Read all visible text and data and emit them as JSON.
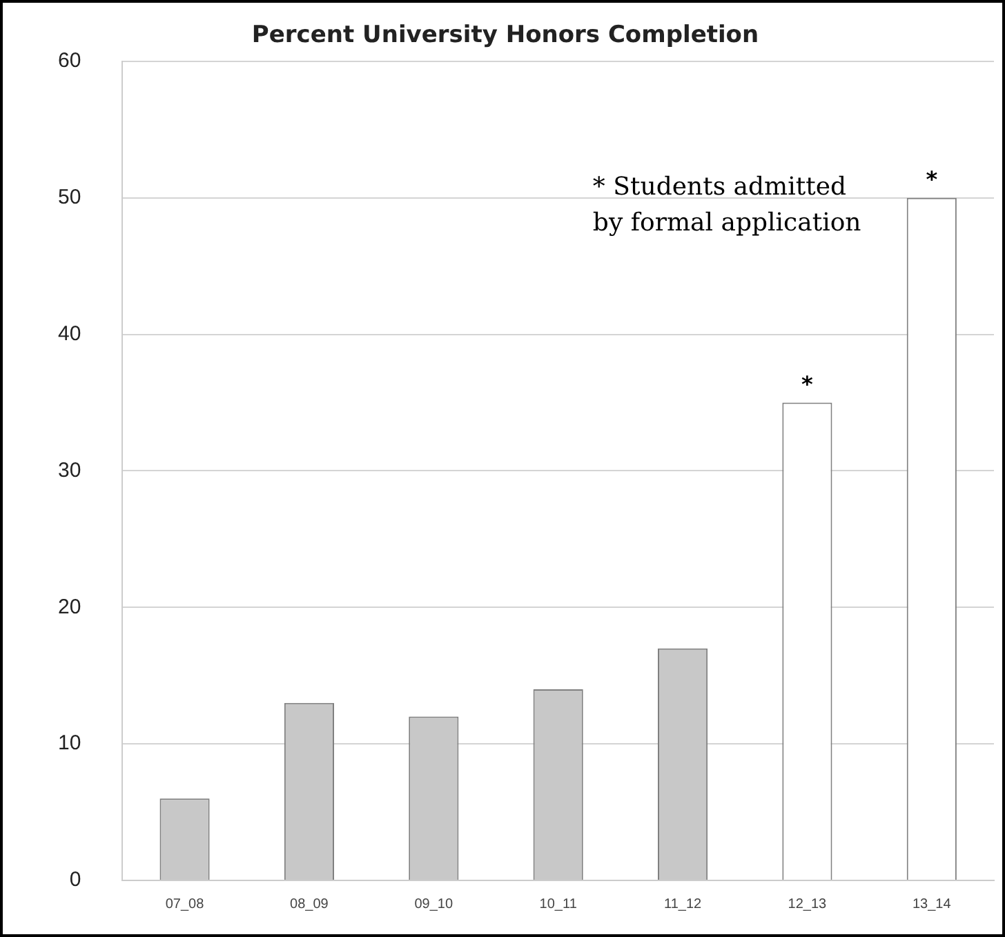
{
  "chart_data": {
    "type": "bar",
    "title": "Percent University Honors Completion",
    "categories": [
      "07_08",
      "08_09",
      "09_10",
      "10_11",
      "11_12",
      "12_13",
      "13_14"
    ],
    "values": [
      6,
      13,
      12,
      14,
      17,
      35,
      50
    ],
    "colors": [
      "#c8c8c8",
      "#c8c8c8",
      "#c8c8c8",
      "#c8c8c8",
      "#c8c8c8",
      "#ffffff",
      "#ffffff"
    ],
    "ylim": [
      0,
      60
    ],
    "yticks": [
      0,
      10,
      20,
      30,
      40,
      50,
      60
    ],
    "grid": "y",
    "legend": false,
    "annotations": [
      {
        "text": "*",
        "x": "12_13",
        "y": 35
      },
      {
        "text": "*",
        "x": "13_14",
        "y": 50
      },
      "* Students admitted by formal application"
    ]
  }
}
